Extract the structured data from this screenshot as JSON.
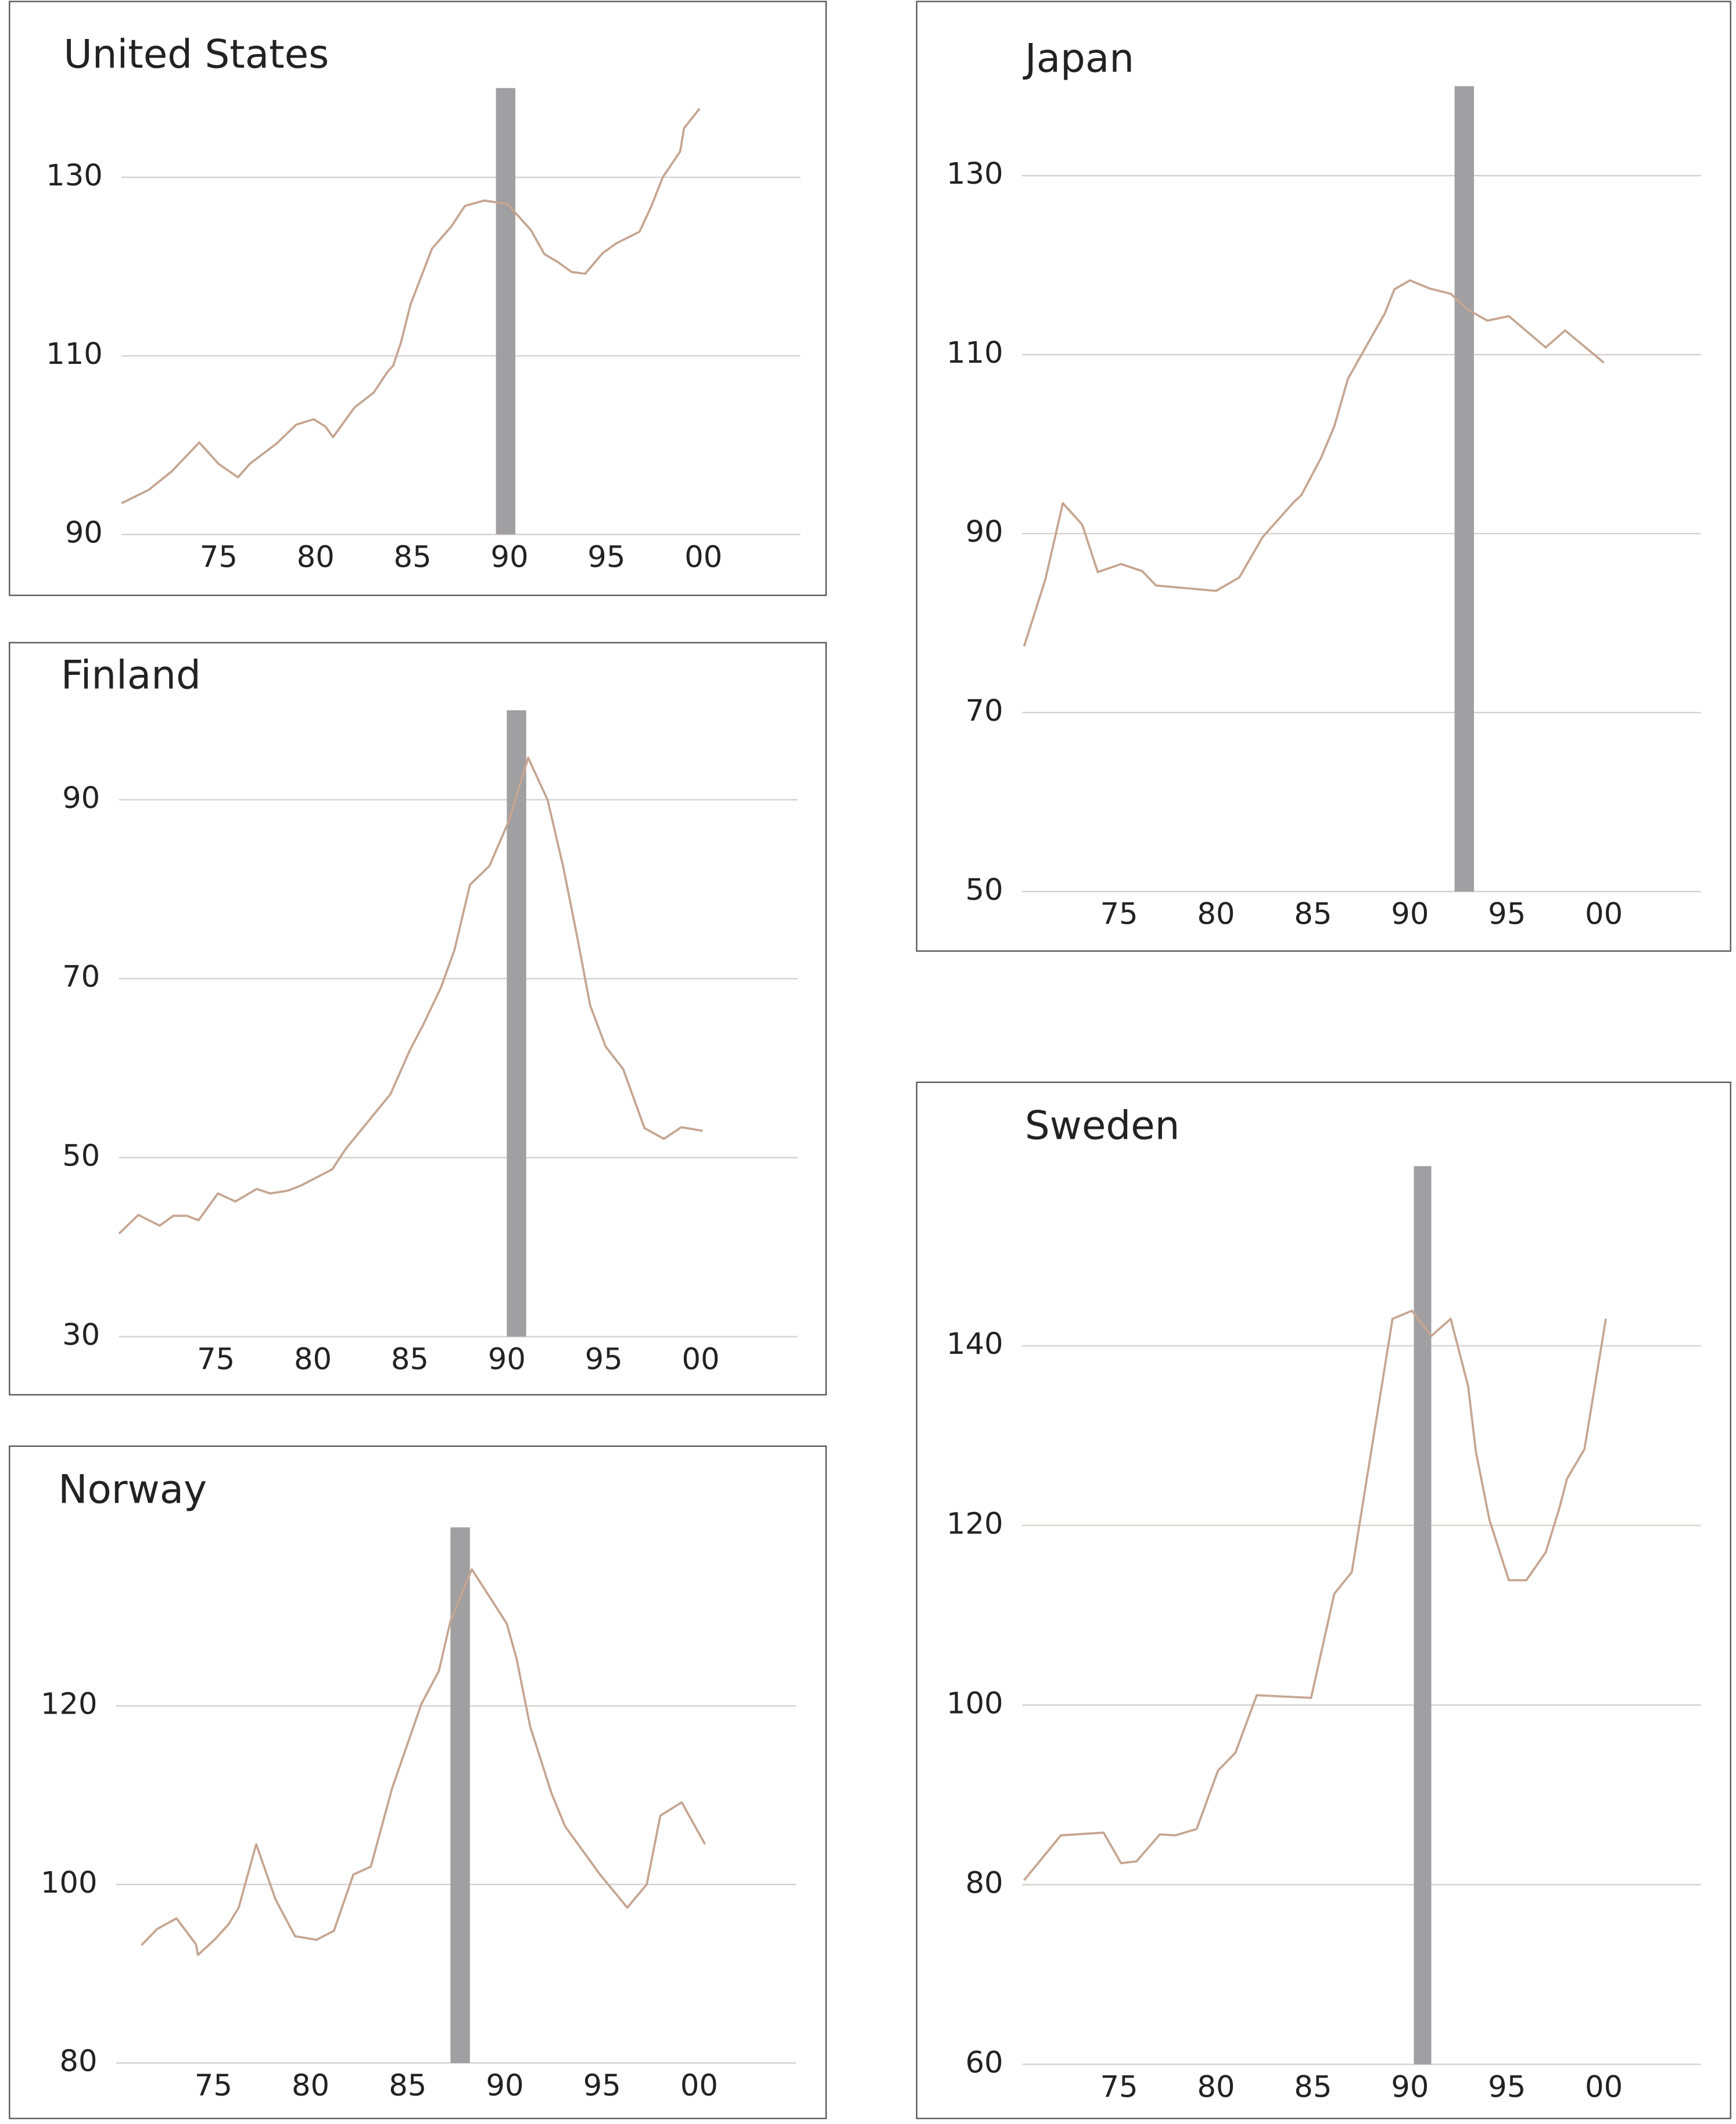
{
  "chart_data": [
    {
      "type": "line",
      "title": "United States",
      "color": "#c6a591",
      "band_color": "#a09fa1",
      "grid": true,
      "bands": [
        {
          "x0": 1989.3,
          "x1": 1990.3
        }
      ],
      "xlim": [
        1970,
        2005
      ],
      "ylim": [
        90,
        140
      ],
      "xticks": [
        {
          "value": 1975,
          "label": "75"
        },
        {
          "value": 1980,
          "label": "80"
        },
        {
          "value": 1985,
          "label": "85"
        },
        {
          "value": 1990,
          "label": "90"
        },
        {
          "value": 1995,
          "label": "95"
        },
        {
          "value": 2000,
          "label": "00"
        }
      ],
      "yticks": [
        90,
        110,
        130
      ],
      "x": [
        1970,
        1971.4,
        1972.6,
        1974.0,
        1975.0,
        1976.0,
        1976.6,
        1978.0,
        1979.0,
        1979.9,
        1980.5,
        1980.9,
        1982.0,
        1983.0,
        1983.7,
        1984.0,
        1984.4,
        1984.9,
        1986.0,
        1987.0,
        1987.7,
        1988.7,
        1989.9,
        1991.1,
        1991.8,
        1992.5,
        1993.2,
        1993.9,
        1994.8,
        1995.5,
        1996.7,
        1997.3,
        1997.9,
        1998.8,
        1999.0,
        1999.8
      ],
      "series": [
        {
          "values": [
            93.5,
            95,
            97.1,
            100.3,
            97.9,
            96.4,
            97.9,
            100.2,
            102.3,
            102.9,
            102.1,
            100.9,
            104.2,
            105.9,
            108.2,
            108.9,
            111.5,
            115.8,
            122.0,
            124.5,
            126.8,
            127.4,
            127.0,
            124.1,
            121.4,
            120.5,
            119.4,
            119.2,
            121.5,
            122.6,
            123.9,
            126.7,
            130.0,
            132.9,
            135.5,
            137.7
          ]
        }
      ]
    },
    {
      "type": "line",
      "title": "Japan",
      "color": "#c6a591",
      "band_color": "#a09fa1",
      "grid": true,
      "bands": [
        {
          "x0": 1992.3,
          "x1": 1993.3
        }
      ],
      "xlim": [
        1970,
        2005
      ],
      "ylim": [
        50,
        140
      ],
      "xticks": [
        {
          "value": 1975,
          "label": "75"
        },
        {
          "value": 1980,
          "label": "80"
        },
        {
          "value": 1985,
          "label": "85"
        },
        {
          "value": 1990,
          "label": "90"
        },
        {
          "value": 1995,
          "label": "95"
        },
        {
          "value": 2000,
          "label": "00"
        }
      ],
      "yticks": [
        50,
        70,
        90,
        110,
        130
      ],
      "x": [
        1970.1,
        1971.2,
        1972.1,
        1973.1,
        1973.9,
        1975.1,
        1976.2,
        1976.9,
        1980.0,
        1981.2,
        1982.4,
        1984.0,
        1984.4,
        1985.4,
        1986.1,
        1986.8,
        1988.7,
        1989.2,
        1990.0,
        1991.0,
        1992.1,
        1993.0,
        1994.0,
        1995.1,
        1997.0,
        1998.0,
        2000.0
      ],
      "series": [
        {
          "values": [
            77.4,
            84.9,
            93.4,
            91.0,
            85.7,
            86.6,
            85.8,
            84.2,
            83.6,
            85.1,
            89.6,
            93.5,
            94.3,
            98.4,
            102.0,
            107.3,
            114.6,
            117.3,
            118.3,
            117.4,
            116.8,
            115.0,
            113.8,
            114.3,
            110.8,
            112.7,
            109.1
          ]
        }
      ]
    },
    {
      "type": "line",
      "title": "Finland",
      "color": "#c6a591",
      "band_color": "#a09fa1",
      "grid": true,
      "bands": [
        {
          "x0": 1990.0,
          "x1": 1991.0
        }
      ],
      "xlim": [
        1970,
        2005
      ],
      "ylim": [
        30,
        100
      ],
      "xticks": [
        {
          "value": 1975,
          "label": "75"
        },
        {
          "value": 1980,
          "label": "80"
        },
        {
          "value": 1985,
          "label": "85"
        },
        {
          "value": 1990,
          "label": "90"
        },
        {
          "value": 1995,
          "label": "95"
        },
        {
          "value": 2000,
          "label": "00"
        }
      ],
      "yticks": [
        30,
        50,
        70,
        90
      ],
      "x": [
        1970,
        1971.0,
        1972.1,
        1972.8,
        1973.5,
        1974.1,
        1975.1,
        1976.0,
        1977.1,
        1977.8,
        1978.7,
        1979.4,
        1981.0,
        1981.7,
        1984.0,
        1985.0,
        1985.7,
        1986.6,
        1987.3,
        1988.1,
        1989.1,
        1990.1,
        1991.1,
        1992.1,
        1992.9,
        1993.6,
        1994.3,
        1995.1,
        1996.0,
        1996.7,
        1997.1,
        1998.1,
        1999.0,
        2000.1
      ],
      "series": [
        {
          "values": [
            41.5,
            43.6,
            42.4,
            43.5,
            43.5,
            43.0,
            46.0,
            45.1,
            46.5,
            46.0,
            46.3,
            46.9,
            48.7,
            51.0,
            57.1,
            62.0,
            64.9,
            69.0,
            73.2,
            80.5,
            82.6,
            87.6,
            94.7,
            90.0,
            82.6,
            75.0,
            67.0,
            62.4,
            59.9,
            55.7,
            53.3,
            52.1,
            53.4,
            53.0
          ]
        }
      ]
    },
    {
      "type": "line",
      "title": "Norway",
      "color": "#c6a591",
      "band_color": "#a09fa1",
      "grid": true,
      "bands": [
        {
          "x0": 1987.2,
          "x1": 1988.2
        }
      ],
      "xlim": [
        1970,
        2005
      ],
      "ylim": [
        80,
        140
      ],
      "xticks": [
        {
          "value": 1975,
          "label": "75"
        },
        {
          "value": 1980,
          "label": "80"
        },
        {
          "value": 1985,
          "label": "85"
        },
        {
          "value": 1990,
          "label": "90"
        },
        {
          "value": 1995,
          "label": "95"
        },
        {
          "value": 2000,
          "label": "00"
        }
      ],
      "yticks": [
        80,
        100,
        120
      ],
      "x": [
        1971.3,
        1972.1,
        1973.1,
        1974.1,
        1974.2,
        1975.1,
        1975.8,
        1976.3,
        1977.2,
        1978.2,
        1979.2,
        1980.3,
        1981.2,
        1982.2,
        1983.1,
        1984.2,
        1985.7,
        1986.6,
        1987.2,
        1988.3,
        1990.1,
        1990.6,
        1991.3,
        1992.4,
        1993.1,
        1994.9,
        1996.3,
        1997.3,
        1998.0,
        1999.1,
        2000.3
      ],
      "series": [
        {
          "values": [
            93.2,
            95.0,
            96.2,
            93.3,
            92.1,
            93.9,
            95.6,
            97.4,
            104.5,
            98.3,
            94.2,
            93.8,
            94.8,
            101.1,
            102.0,
            110.8,
            120.2,
            123.9,
            129.5,
            135.3,
            129.2,
            125.3,
            117.7,
            110.2,
            106.5,
            101.1,
            97.4,
            100.0,
            107.7,
            109.2,
            104.5
          ]
        }
      ]
    },
    {
      "type": "line",
      "title": "Sweden",
      "color": "#c6a591",
      "band_color": "#a09fa1",
      "grid": true,
      "bands": [
        {
          "x0": 1990.2,
          "x1": 1991.1
        }
      ],
      "xlim": [
        1970,
        2005
      ],
      "ylim": [
        60,
        160
      ],
      "xticks": [
        {
          "value": 1975,
          "label": "75"
        },
        {
          "value": 1980,
          "label": "80"
        },
        {
          "value": 1985,
          "label": "85"
        },
        {
          "value": 1990,
          "label": "90"
        },
        {
          "value": 1995,
          "label": "95"
        },
        {
          "value": 2000,
          "label": "00"
        }
      ],
      "yticks": [
        60,
        80,
        100,
        120,
        140
      ],
      "x": [
        1970.1,
        1972.0,
        1974.2,
        1975.1,
        1975.9,
        1977.1,
        1977.9,
        1979.0,
        1980.1,
        1981.0,
        1982.1,
        1984.9,
        1986.1,
        1987.0,
        1989.1,
        1990.1,
        1991.1,
        1992.1,
        1993.0,
        1993.4,
        1994.1,
        1995.1,
        1996.0,
        1997.0,
        1997.7,
        1998.1,
        1999.0,
        2000.1
      ],
      "series": [
        {
          "values": [
            80.5,
            85.5,
            85.8,
            82.4,
            82.6,
            85.6,
            85.5,
            86.2,
            92.7,
            94.7,
            101.1,
            100.8,
            112.4,
            114.8,
            143.0,
            143.9,
            141.1,
            143.0,
            135.5,
            128.2,
            120.6,
            113.9,
            113.9,
            117.0,
            121.9,
            125.2,
            128.5,
            143.0
          ]
        }
      ]
    }
  ]
}
